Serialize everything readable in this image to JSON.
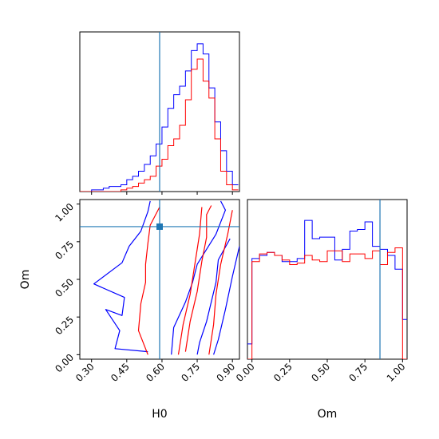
{
  "chart_data": {
    "type": "corner",
    "parameters": [
      "H0",
      "Om"
    ],
    "xlabel_h0": "H0",
    "xlabel_om": "Om",
    "ylabel_om": "Om",
    "h0_ticks": [
      "0.30",
      "0.45",
      "0.60",
      "0.75",
      "0.90"
    ],
    "om_ticks": [
      "0.00",
      "0.25",
      "0.50",
      "0.75",
      "1.00"
    ],
    "h0_range": [
      0.25,
      0.93
    ],
    "om_range": [
      -0.03,
      1.03
    ],
    "truth": {
      "H0": 0.59,
      "Om": 0.85
    },
    "colors": {
      "blue": "#0000ff",
      "red": "#ff0000",
      "truth": "#1f77b4"
    },
    "hist_h0": {
      "edges": [
        0.25,
        0.275,
        0.3,
        0.325,
        0.35,
        0.375,
        0.4,
        0.425,
        0.45,
        0.475,
        0.5,
        0.525,
        0.55,
        0.575,
        0.6,
        0.625,
        0.65,
        0.675,
        0.7,
        0.725,
        0.75,
        0.775,
        0.8,
        0.825,
        0.85,
        0.875,
        0.9,
        0.925
      ],
      "series": [
        {
          "color": "blue",
          "values": [
            0,
            0,
            1,
            1,
            2,
            3,
            3,
            4,
            7,
            9,
            12,
            16,
            21,
            28,
            38,
            49,
            57,
            62,
            71,
            83,
            87,
            81,
            61,
            41,
            24,
            12,
            4
          ]
        },
        {
          "color": "red",
          "values": [
            0,
            0,
            0,
            0,
            0,
            0,
            0,
            1,
            2,
            3,
            5,
            7,
            9,
            15,
            19,
            27,
            31,
            39,
            54,
            72,
            78,
            65,
            55,
            31,
            12,
            4,
            1
          ]
        }
      ]
    },
    "hist_om": {
      "edges": [
        -0.05,
        0.0,
        0.05,
        0.1,
        0.15,
        0.2,
        0.25,
        0.3,
        0.35,
        0.4,
        0.45,
        0.5,
        0.55,
        0.6,
        0.65,
        0.7,
        0.75,
        0.8,
        0.85,
        0.9,
        0.95,
        1.0,
        1.05
      ],
      "series": [
        {
          "color": "blue",
          "values": [
            10,
            66,
            68,
            70,
            68,
            64,
            64,
            66,
            91,
            79,
            80,
            80,
            65,
            72,
            84,
            85,
            90,
            74,
            72,
            68,
            59,
            26
          ]
        },
        {
          "color": "red",
          "values": [
            0,
            64,
            69,
            70,
            68,
            65,
            62,
            63,
            68,
            65,
            64,
            71,
            71,
            64,
            69,
            69,
            66,
            71,
            62,
            70,
            73,
            0
          ]
        }
      ]
    },
    "contours": [
      {
        "color": "blue",
        "points": [
          [
            0.54,
            0.02
          ],
          [
            0.4,
            0.04
          ],
          [
            0.42,
            0.16
          ],
          [
            0.36,
            0.3
          ],
          [
            0.43,
            0.26
          ],
          [
            0.44,
            0.38
          ],
          [
            0.31,
            0.47
          ],
          [
            0.43,
            0.61
          ],
          [
            0.46,
            0.72
          ],
          [
            0.51,
            0.82
          ],
          [
            0.54,
            0.95
          ],
          [
            0.55,
            1.02
          ]
        ]
      },
      {
        "color": "blue",
        "points": [
          [
            0.85,
            1.02
          ],
          [
            0.87,
            0.96
          ],
          [
            0.83,
            0.8
          ],
          [
            0.79,
            0.7
          ],
          [
            0.75,
            0.6
          ],
          [
            0.73,
            0.48
          ],
          [
            0.7,
            0.35
          ],
          [
            0.65,
            0.18
          ],
          [
            0.64,
            0.0
          ]
        ]
      },
      {
        "color": "blue",
        "points": [
          [
            0.89,
            0.77
          ],
          [
            0.84,
            0.63
          ],
          [
            0.83,
            0.48
          ],
          [
            0.81,
            0.35
          ],
          [
            0.79,
            0.22
          ],
          [
            0.76,
            0.08
          ],
          [
            0.75,
            0.0
          ]
        ]
      },
      {
        "color": "blue",
        "points": [
          [
            0.93,
            0.72
          ],
          [
            0.9,
            0.52
          ],
          [
            0.87,
            0.3
          ],
          [
            0.84,
            0.1
          ],
          [
            0.82,
            0.0
          ]
        ]
      },
      {
        "color": "red",
        "points": [
          [
            0.54,
            0.0
          ],
          [
            0.5,
            0.16
          ],
          [
            0.51,
            0.34
          ],
          [
            0.53,
            0.48
          ],
          [
            0.53,
            0.6
          ],
          [
            0.54,
            0.74
          ],
          [
            0.55,
            0.86
          ],
          [
            0.59,
            0.98
          ]
        ]
      },
      {
        "color": "red",
        "points": [
          [
            0.7,
            0.02
          ],
          [
            0.72,
            0.22
          ],
          [
            0.75,
            0.42
          ],
          [
            0.77,
            0.62
          ],
          [
            0.79,
            0.78
          ],
          [
            0.79,
            0.93
          ],
          [
            0.81,
            0.99
          ]
        ]
      },
      {
        "color": "red",
        "points": [
          [
            0.8,
            0.0
          ],
          [
            0.82,
            0.2
          ],
          [
            0.83,
            0.4
          ],
          [
            0.85,
            0.6
          ],
          [
            0.88,
            0.8
          ],
          [
            0.9,
            0.96
          ]
        ]
      },
      {
        "color": "red",
        "points": [
          [
            0.67,
            0.0
          ],
          [
            0.69,
            0.2
          ],
          [
            0.72,
            0.4
          ],
          [
            0.74,
            0.6
          ],
          [
            0.76,
            0.8
          ],
          [
            0.77,
            0.98
          ]
        ]
      }
    ]
  }
}
